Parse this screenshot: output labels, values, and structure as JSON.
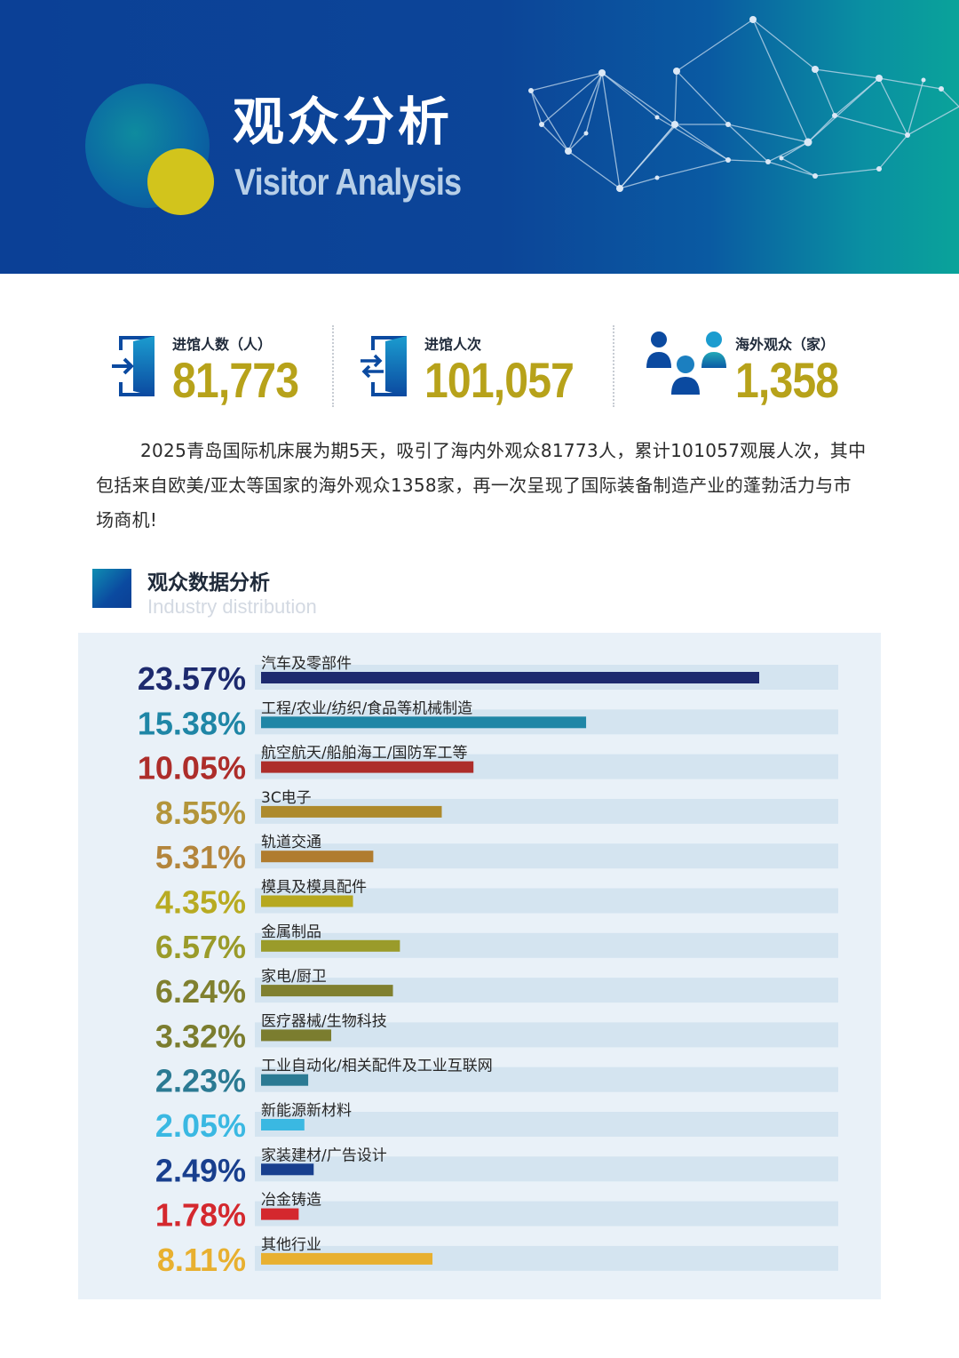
{
  "banner": {
    "title_cn": "观众分析",
    "title_en": "Visitor Analysis"
  },
  "stats": [
    {
      "label": "进馆人数（人）",
      "value": "81,773",
      "icon": "door-enter-icon"
    },
    {
      "label": "进馆人次",
      "value": "101,057",
      "icon": "door-swap-icon"
    },
    {
      "label": "海外观众（家）",
      "value": "1,358",
      "icon": "people-group-icon"
    }
  ],
  "intro": "2025青岛国际机床展为期5天，吸引了海内外观众81773人，累计101057观展人次，其中包括来自欧美/亚太等国家的海外观众1358家，再一次呈现了国际装备制造产业的蓬勃活力与市场商机!",
  "section": {
    "title": "观众数据分析",
    "subtitle": "Industry distribution"
  },
  "colors": {
    "banner_blue": "#0b4096",
    "banner_teal": "#0aa39a",
    "accent_gold": "#b7a21a",
    "track": "#d4e4f0"
  },
  "chart_data": {
    "type": "bar",
    "orientation": "horizontal",
    "title": "观众数据分析",
    "subtitle": "Industry distribution",
    "unit": "%",
    "xlim": [
      0,
      27.2
    ],
    "grid": false,
    "categories": [
      "汽车及零部件",
      "工程/农业/纺织/食品等机械制造",
      "航空航天/船舶海工/国防军工等",
      "3C电子",
      "轨道交通",
      "模具及模具配件",
      "金属制品",
      "家电/厨卫",
      "医疗器械/生物科技",
      "工业自动化/相关配件及工业互联网",
      "新能源新材料",
      "家装建材/广告设计",
      "冶金铸造",
      "其他行业"
    ],
    "values": [
      23.57,
      15.38,
      10.05,
      8.55,
      5.31,
      4.35,
      6.57,
      6.24,
      3.32,
      2.23,
      2.05,
      2.49,
      1.78,
      8.11
    ],
    "labels": [
      "23.57%",
      "15.38%",
      "10.05%",
      "8.55%",
      "5.31%",
      "4.35%",
      "6.57%",
      "6.24%",
      "3.32%",
      "2.23%",
      "2.05%",
      "2.49%",
      "1.78%",
      "8.11%"
    ],
    "colors": [
      "#1d2a6e",
      "#1f86a6",
      "#ad2d2a",
      "#ad8a2c",
      "#b07c2f",
      "#b6a81f",
      "#9a9b2a",
      "#80802f",
      "#7b7d2f",
      "#2b7a93",
      "#3ab8e2",
      "#183f8e",
      "#d4282e",
      "#e8b030"
    ],
    "label_colors": [
      "#1d2a6e",
      "#1f86a6",
      "#ad2d2a",
      "#b3953a",
      "#b3853c",
      "#b8ab22",
      "#9a9b2a",
      "#80802f",
      "#7b7d2f",
      "#2b7a93",
      "#3ab8e2",
      "#183f8e",
      "#d4282e",
      "#e8b030"
    ]
  }
}
